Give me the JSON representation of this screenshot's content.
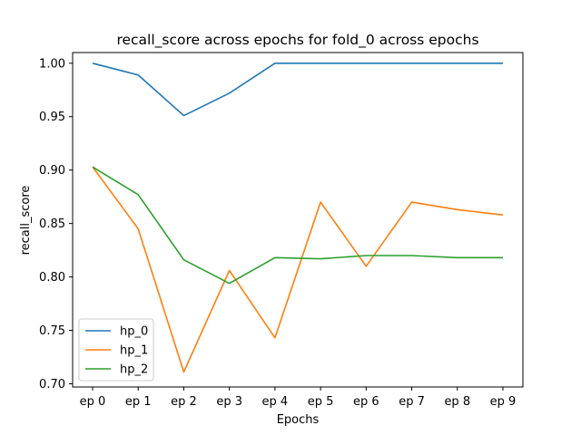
{
  "chart_data": {
    "type": "line",
    "title": "recall_score across epochs for fold_0 across epochs",
    "xlabel": "Epochs",
    "ylabel": "recall_score",
    "categories": [
      "ep 0",
      "ep 1",
      "ep 2",
      "ep 3",
      "ep 4",
      "ep 5",
      "ep 6",
      "ep 7",
      "ep 8",
      "ep 9"
    ],
    "ylim": [
      0.697,
      1.01
    ],
    "yticks": [
      0.7,
      0.75,
      0.8,
      0.85,
      0.9,
      0.95,
      1.0
    ],
    "ytick_labels": [
      "0.70",
      "0.75",
      "0.80",
      "0.85",
      "0.90",
      "0.95",
      "1.00"
    ],
    "grid": false,
    "legend_position": "lower-left",
    "series": [
      {
        "name": "hp_0",
        "color": "#1f77b4",
        "values": [
          1.0,
          0.989,
          0.951,
          0.972,
          1.0,
          1.0,
          1.0,
          1.0,
          1.0,
          1.0
        ]
      },
      {
        "name": "hp_1",
        "color": "#ff7f0e",
        "values": [
          0.903,
          0.845,
          0.711,
          0.806,
          0.743,
          0.87,
          0.81,
          0.87,
          0.863,
          0.858
        ]
      },
      {
        "name": "hp_2",
        "color": "#2ca02c",
        "values": [
          0.903,
          0.877,
          0.816,
          0.794,
          0.818,
          0.817,
          0.82,
          0.82,
          0.818,
          0.818
        ]
      }
    ]
  }
}
